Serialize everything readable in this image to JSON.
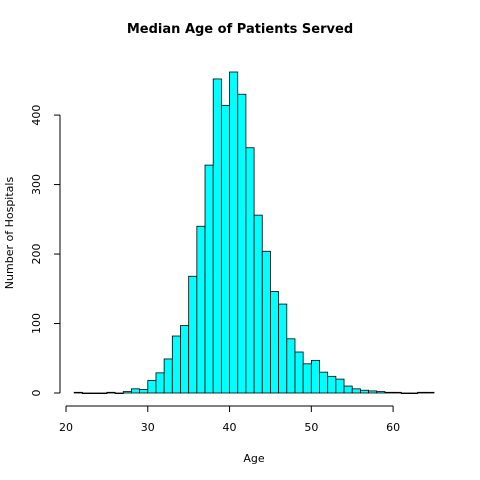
{
  "chart_data": {
    "type": "bar",
    "title": "Median Age of Patients Served",
    "xlabel": "Age",
    "ylabel": "Number of Hospitals",
    "xlim": [
      20,
      65
    ],
    "ylim": [
      0,
      462
    ],
    "xticks": [
      20,
      30,
      40,
      50,
      60
    ],
    "yticks": [
      0,
      100,
      200,
      300,
      400
    ],
    "bin_width": 1,
    "bins_start": [
      21,
      22,
      23,
      24,
      25,
      26,
      27,
      28,
      29,
      30,
      31,
      32,
      33,
      34,
      35,
      36,
      37,
      38,
      39,
      40,
      41,
      42,
      43,
      44,
      45,
      46,
      47,
      48,
      49,
      50,
      51,
      52,
      53,
      54,
      55,
      56,
      57,
      58,
      59,
      60,
      61,
      62,
      63,
      64
    ],
    "values": [
      1,
      0,
      0,
      0,
      1,
      0,
      2,
      6,
      5,
      18,
      29,
      49,
      82,
      97,
      168,
      240,
      328,
      452,
      414,
      462,
      430,
      353,
      256,
      204,
      146,
      128,
      78,
      59,
      42,
      47,
      30,
      24,
      20,
      10,
      6,
      4,
      3,
      2,
      1,
      1,
      0,
      0,
      1,
      1
    ],
    "bar_color": "#00ffff",
    "grid": false
  }
}
